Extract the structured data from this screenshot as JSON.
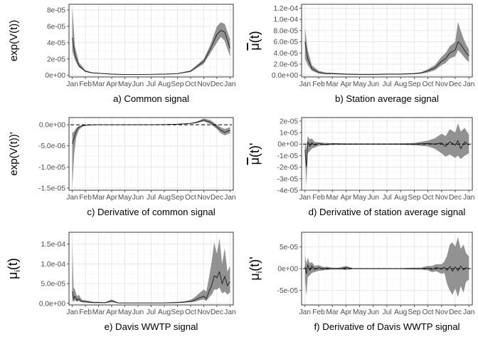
{
  "months": [
    "Jan",
    "Feb",
    "Mar",
    "Apr",
    "May",
    "Jun",
    "Jul",
    "Aug",
    "Sep",
    "Oct",
    "Nov",
    "Dec",
    "Jan"
  ],
  "chart_data": [
    {
      "id": "a",
      "type": "area",
      "caption": "a) Common signal",
      "ylabel_main": "exp(V(t))",
      "ylabel_sup": "",
      "x_ticks": [
        "Jan",
        "Feb",
        "Mar",
        "Apr",
        "May",
        "Jun",
        "Jul",
        "Aug",
        "Sep",
        "Oct",
        "Nov",
        "Dec",
        "Jan"
      ],
      "ylim": [
        -2e-06,
        8.7e-05
      ],
      "y_ticks": [
        0,
        2e-05,
        4e-05,
        6e-05,
        8e-05
      ],
      "y_tick_labels": [
        "0e+00",
        "2e-05",
        "4e-05",
        "6e-05",
        "8e-05"
      ],
      "zero_line": false,
      "series": [
        {
          "x": [
            0,
            0.2,
            0.5,
            1,
            1.5,
            2,
            3,
            4,
            5,
            6,
            7,
            8,
            9,
            10,
            10.5,
            11,
            11.3,
            11.6,
            12
          ],
          "mean": [
            4.6e-05,
            2.5e-05,
            1.2e-05,
            5e-06,
            3e-06,
            2.5e-06,
            1.5e-06,
            1e-06,
            1e-06,
            1.2e-06,
            1.5e-06,
            2e-06,
            5e-06,
            1.7e-05,
            3.2e-05,
            5e-05,
            5.5e-05,
            5.3e-05,
            3.3e-05
          ],
          "lower": [
            3e-05,
            1.9e-05,
            1e-05,
            4e-06,
            2.5e-06,
            2e-06,
            1.2e-06,
            8e-07,
            8e-07,
            1e-06,
            1.2e-06,
            1.7e-06,
            4e-06,
            1.4e-05,
            2.7e-05,
            4e-05,
            4.7e-05,
            4.2e-05,
            2.3e-05
          ],
          "upper": [
            8.4e-05,
            3.6e-05,
            1.6e-05,
            6e-06,
            3.7e-06,
            3e-06,
            1.8e-06,
            1.3e-06,
            1.2e-06,
            1.5e-06,
            1.8e-06,
            2.5e-06,
            6e-06,
            2e-05,
            3.7e-05,
            6e-05,
            6.5e-05,
            6.3e-05,
            4.4e-05
          ]
        }
      ]
    },
    {
      "id": "b",
      "type": "area",
      "caption": "b) Station average signal",
      "ylabel_main": "μ(t)",
      "ylabel_sup": "",
      "ylabel_overline": true,
      "x_ticks": [
        "Jan",
        "Feb",
        "Mar",
        "Apr",
        "May",
        "Jun",
        "Jul",
        "Aug",
        "Sep",
        "Oct",
        "Nov",
        "Dec",
        "Jan"
      ],
      "ylim": [
        -3e-06,
        0.000127
      ],
      "y_ticks": [
        0,
        2e-05,
        4e-05,
        6e-05,
        8e-05,
        0.0001,
        0.00012
      ],
      "y_tick_labels": [
        "0.0e+00",
        "2.0e-05",
        "4.0e-05",
        "6.0e-05",
        "8.0e-05",
        "1.0e-04",
        "1.2e-04"
      ],
      "zero_line": false,
      "series": [
        {
          "x": [
            0,
            0.2,
            0.5,
            1,
            1.5,
            2,
            3,
            4,
            5,
            6,
            7,
            8,
            8.5,
            9,
            9.5,
            10,
            10.3,
            10.6,
            11,
            11.2,
            11.4,
            11.6,
            11.8,
            12
          ],
          "mean": [
            6e-05,
            3e-05,
            1.2e-05,
            5e-06,
            3e-06,
            3e-06,
            2e-06,
            1.5e-06,
            1.5e-06,
            2e-06,
            2e-06,
            3e-06,
            4e-06,
            8e-06,
            1.3e-05,
            2.5e-05,
            3e-05,
            4e-05,
            4.5e-05,
            6e-05,
            5.5e-05,
            4.8e-05,
            4e-05,
            3.5e-05
          ],
          "lower": [
            3e-05,
            1.8e-05,
            8e-06,
            3e-06,
            2e-06,
            2e-06,
            1.2e-06,
            1e-06,
            1e-06,
            1.3e-06,
            1.3e-06,
            2e-06,
            3e-06,
            5e-06,
            9e-06,
            1.8e-05,
            2.2e-05,
            3e-05,
            3.4e-05,
            4.5e-05,
            4e-05,
            3.4e-05,
            2.8e-05,
            2.4e-05
          ],
          "upper": [
            8.5e-05,
            4.5e-05,
            1.8e-05,
            8e-06,
            5e-06,
            4.5e-06,
            3e-06,
            2.5e-06,
            2.5e-06,
            3e-06,
            3e-06,
            4e-06,
            5.5e-06,
            1.1e-05,
            1.8e-05,
            3.3e-05,
            4e-05,
            5.2e-05,
            6e-05,
            9.5e-05,
            8e-05,
            6.6e-05,
            5.5e-05,
            4.6e-05
          ]
        }
      ]
    },
    {
      "id": "c",
      "type": "area",
      "caption": "c) Derivative of common signal",
      "ylabel_main": "exp(V(t))'",
      "ylabel_sup": "",
      "x_ticks": [
        "Jan",
        "Feb",
        "Mar",
        "Apr",
        "May",
        "Jun",
        "Jul",
        "Aug",
        "Sep",
        "Oct",
        "Nov",
        "Dec",
        "Jan"
      ],
      "ylim": [
        -1.55e-05,
        1.7e-06
      ],
      "y_ticks": [
        0,
        -5e-06,
        -1e-05,
        -1.5e-05
      ],
      "y_tick_labels": [
        "0.0e+00",
        "-5.0e-06",
        "-1.0e-05",
        "-1.5e-05"
      ],
      "zero_line": true,
      "series": [
        {
          "x": [
            0,
            0.15,
            0.3,
            0.5,
            0.8,
            1.2,
            1.8,
            3,
            5,
            7,
            8,
            9,
            9.5,
            10,
            10.5,
            11,
            11.3,
            11.6,
            12
          ],
          "mean": [
            -4.5e-06,
            -3e-06,
            -1.5e-06,
            -6e-07,
            -2e-07,
            -8e-08,
            0,
            0,
            0,
            5e-08,
            1.2e-07,
            3e-07,
            6e-07,
            1.1e-06,
            6e-07,
            -5e-07,
            -1.3e-06,
            -1.8e-06,
            -1.3e-06
          ],
          "lower": [
            -1.5e-05,
            -6.8e-06,
            -3e-06,
            -1.2e-06,
            -4e-07,
            -1.5e-07,
            -5e-08,
            -3e-08,
            -3e-08,
            0,
            5e-08,
            2e-07,
            4e-07,
            8e-07,
            2e-07,
            -1e-06,
            -2e-06,
            -2.5e-06,
            -2e-06
          ],
          "upper": [
            -2e-06,
            -1.5e-06,
            -8e-07,
            -3e-07,
            -8e-08,
            -3e-08,
            3e-08,
            3e-08,
            3e-08,
            1e-07,
            2e-07,
            4e-07,
            8e-07,
            1.5e-06,
            1.1e-06,
            0,
            -6e-07,
            -1e-06,
            -6e-07
          ]
        }
      ]
    },
    {
      "id": "d",
      "type": "area",
      "caption": "d) Derivative of station average signal",
      "ylabel_main": "μ(t)'",
      "ylabel_sup": "",
      "ylabel_overline": true,
      "x_ticks": [
        "Jan",
        "Feb",
        "Mar",
        "Apr",
        "May",
        "Jun",
        "Jul",
        "Aug",
        "Sep",
        "Oct",
        "Nov",
        "Dec",
        "Jan"
      ],
      "ylim": [
        -4e-05,
        2.3e-05
      ],
      "y_ticks": [
        2e-05,
        1e-05,
        0,
        -1e-05,
        -2e-05,
        -3e-05,
        -4e-05
      ],
      "y_tick_labels": [
        "2e-05",
        "1e-05",
        "0e+00",
        "-1e-05",
        "-2e-05",
        "-3e-05",
        "-4e-05"
      ],
      "zero_line": true,
      "series": [
        {
          "x": [
            0,
            0.1,
            0.2,
            0.35,
            0.5,
            0.7,
            1,
            1.5,
            2,
            3,
            4,
            5,
            6,
            7,
            8,
            9,
            9.5,
            10,
            10.3,
            10.6,
            11,
            11.2,
            11.4,
            11.7,
            12
          ],
          "mean": [
            -5e-06,
            -2e-05,
            2e-06,
            -2e-06,
            1e-06,
            -1e-06,
            5e-07,
            -5e-07,
            3e-07,
            0,
            0,
            0,
            0,
            0,
            0,
            5e-07,
            0,
            1e-06,
            -2e-06,
            2e-06,
            -1e-06,
            3e-06,
            -4e-06,
            2e-06,
            -1e-06
          ],
          "lower": [
            -1e-05,
            -3.6e-05,
            -8e-06,
            -6e-06,
            -4e-06,
            -3e-06,
            -1.5e-06,
            -1e-06,
            -8e-07,
            -6e-07,
            -5e-07,
            -5e-07,
            -5e-07,
            -6e-07,
            -1e-06,
            -2e-06,
            -4e-06,
            -8e-06,
            -1.1e-05,
            -9e-06,
            -1.2e-05,
            -1e-05,
            -1.3e-05,
            -1e-05,
            -8e-06
          ],
          "upper": [
            2e-06,
            -4e-06,
            7e-06,
            4e-06,
            5e-06,
            2e-06,
            1.5e-06,
            1e-06,
            8e-07,
            6e-07,
            5e-07,
            5e-07,
            5e-07,
            6e-07,
            1e-06,
            3e-06,
            5e-06,
            9e-06,
            7e-06,
            1.3e-05,
            1e-05,
            1.8e-05,
            1.1e-05,
            1.4e-05,
            8e-06
          ]
        }
      ]
    },
    {
      "id": "e",
      "type": "area",
      "caption": "e) Davis WWTP signal",
      "ylabel_main": "μ",
      "ylabel_sub": "i",
      "ylabel_rest": "(t)",
      "x_ticks": [
        "Jan",
        "Feb",
        "Mar",
        "Apr",
        "May",
        "Jun",
        "Jul",
        "Aug",
        "Sep",
        "Oct",
        "Nov",
        "Dec",
        "Jan"
      ],
      "ylim": [
        -4e-06,
        0.00018
      ],
      "y_ticks": [
        0,
        5e-05,
        0.0001,
        0.00015
      ],
      "y_tick_labels": [
        "0.0e+00",
        "5.0e-05",
        "1.0e-04",
        "1.5e-04"
      ],
      "zero_line": false,
      "series": [
        {
          "x": [
            0,
            0.1,
            0.2,
            0.35,
            0.5,
            0.7,
            1,
            1.3,
            1.6,
            2,
            2.5,
            3,
            3.5,
            4,
            5,
            6,
            7,
            8,
            8.5,
            9,
            9.3,
            9.6,
            10,
            10.2,
            10.4,
            10.6,
            10.8,
            11,
            11.2,
            11.4,
            11.6,
            11.8,
            12
          ],
          "mean": [
            3e-05,
            1.2e-05,
            1.8e-05,
            8e-06,
            1.1e-05,
            5e-06,
            4e-06,
            3e-06,
            2e-06,
            2e-06,
            1.5e-06,
            6e-06,
            1e-06,
            1e-06,
            1e-06,
            1e-06,
            1e-06,
            2e-06,
            3e-06,
            5e-06,
            8e-06,
            1.3e-05,
            1.8e-05,
            1.2e-05,
            3e-05,
            4.5e-05,
            7e-05,
            6.5e-05,
            8e-05,
            5e-05,
            6.8e-05,
            4.5e-05,
            5.5e-05
          ],
          "lower": [
            8e-06,
            4e-06,
            8e-06,
            4e-06,
            6e-06,
            3e-06,
            2e-06,
            1.5e-06,
            1e-06,
            1e-06,
            8e-07,
            3e-06,
            5e-07,
            5e-07,
            5e-07,
            5e-07,
            5e-07,
            1e-06,
            2e-06,
            3e-06,
            4e-06,
            7e-06,
            1e-05,
            6e-06,
            1.5e-05,
            2.2e-05,
            3.5e-05,
            3.5e-05,
            4e-05,
            2.5e-05,
            3e-05,
            2.2e-05,
            2.8e-05
          ],
          "upper": [
            0.000152,
            4e-05,
            3.5e-05,
            1.8e-05,
            2.2e-05,
            1e-05,
            8e-06,
            6e-06,
            4e-06,
            4e-06,
            3e-06,
            1e-05,
            2e-06,
            2e-06,
            2e-06,
            2e-06,
            2e-06,
            4e-06,
            5e-06,
            9e-06,
            1.5e-05,
            2.4e-05,
            3.5e-05,
            3e-05,
            6.5e-05,
            0.000105,
            0.000155,
            0.000125,
            0.000165,
            0.0001,
            0.00014,
            8e-05,
            9.5e-05
          ]
        }
      ]
    },
    {
      "id": "f",
      "type": "area",
      "caption": "f) Derivative of Davis WWTP signal",
      "ylabel_main": "μ",
      "ylabel_sub": "i",
      "ylabel_rest": "(t)'",
      "x_ticks": [
        "Jan",
        "Feb",
        "Mar",
        "Apr",
        "May",
        "Jun",
        "Jul",
        "Aug",
        "Sep",
        "Oct",
        "Nov",
        "Dec",
        "Jan"
      ],
      "ylim": [
        -8.3e-05,
        8.3e-05
      ],
      "y_ticks": [
        5e-05,
        0,
        -5e-05
      ],
      "y_tick_labels": [
        "5e-05",
        "0e+00",
        "-5e-05"
      ],
      "zero_line": true,
      "series": [
        {
          "x": [
            0,
            0.1,
            0.2,
            0.35,
            0.5,
            0.7,
            1,
            1.3,
            1.6,
            2,
            2.5,
            3,
            3.5,
            4,
            5,
            6,
            7,
            8,
            8.5,
            9,
            9.3,
            9.6,
            10,
            10.2,
            10.4,
            10.6,
            10.8,
            11,
            11.2,
            11.4,
            11.6,
            11.8,
            12
          ],
          "mean": [
            5e-06,
            -1.2e-05,
            8e-06,
            -4e-06,
            6e-06,
            -2e-06,
            2e-06,
            -1e-06,
            1e-06,
            0,
            0,
            2e-06,
            0,
            0,
            0,
            0,
            0,
            0,
            0,
            1e-06,
            -2e-06,
            2e-06,
            -1e-06,
            3e-06,
            -4e-06,
            5e-06,
            -6e-06,
            4e-06,
            -5e-06,
            6e-06,
            -3e-06,
            2e-06,
            0
          ],
          "lower": [
            -2.5e-05,
            -6.2e-05,
            -2e-05,
            -1.5e-05,
            -1e-05,
            -8e-06,
            -5e-06,
            -4e-06,
            -3e-06,
            -2e-06,
            -2e-06,
            -3e-06,
            -1e-06,
            -1e-06,
            -1e-06,
            -1e-06,
            -1e-06,
            -2e-06,
            -2e-06,
            -4e-06,
            -8e-06,
            -6e-06,
            -1.2e-05,
            -1e-05,
            -3.5e-05,
            -5e-05,
            -6e-05,
            -4.5e-05,
            -6.5e-05,
            -4e-05,
            -5.5e-05,
            -3e-05,
            -2.5e-05
          ],
          "upper": [
            3e-05,
            1.2e-05,
            2.5e-05,
            1.2e-05,
            1.5e-05,
            6e-06,
            8e-06,
            4e-06,
            4e-06,
            2e-06,
            2e-06,
            6e-06,
            1e-06,
            1e-06,
            1e-06,
            1e-06,
            1e-06,
            2e-06,
            2e-06,
            6e-06,
            6e-06,
            1e-05,
            1e-05,
            1.6e-05,
            3e-05,
            5.5e-05,
            6e-05,
            5e-05,
            7.2e-05,
            4.5e-05,
            5.5e-05,
            3.5e-05,
            2.8e-05
          ]
        }
      ]
    }
  ]
}
